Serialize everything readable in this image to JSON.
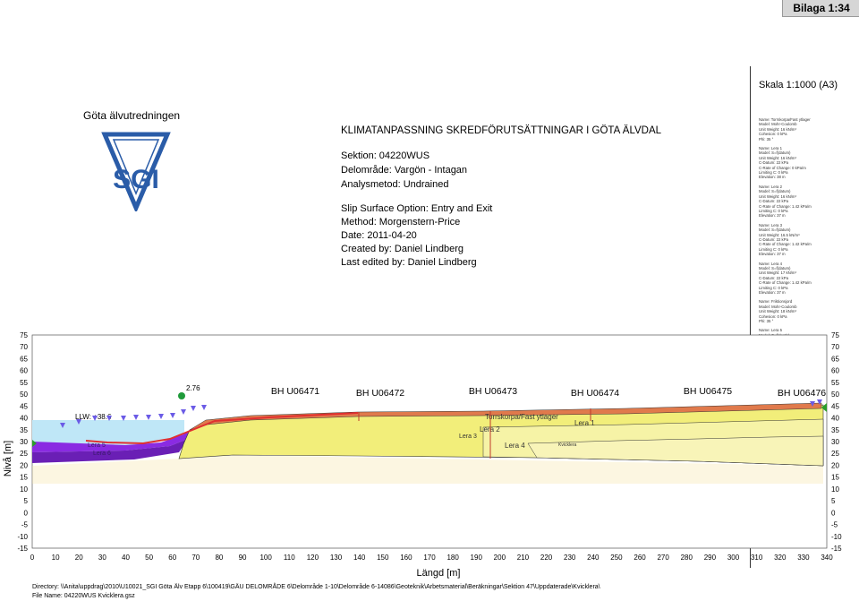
{
  "sheet": {
    "badge": "Bilaga 1:34",
    "scale": "Skala 1:1000 (A3)",
    "org": "Göta älvutredningen",
    "logo_text": "SGI"
  },
  "header": {
    "title": "KLIMATANPASSNING SKREDFÖRUTSÄTTNINGAR I GÖTA ÄLVDAL",
    "section": "Sektion: 04220WUS",
    "subarea": "Delområde: Vargön - Intagan",
    "method_analysis": "Analysmetod: Undrained",
    "slip": "Slip Surface Option: Entry and Exit",
    "method": "Method: Morgenstern-Price",
    "date": "Date: 2011-04-20",
    "created": "Created by: Daniel Lindberg",
    "edited": "Last edited by: Daniel Lindberg"
  },
  "materials": [
    [
      "Name: Torrskorpa/Fast ytlager",
      "Model: Mohr-Coulomb",
      "Unit Weight: 16 kN/m³",
      "Cohesion: 0 kPa",
      "Phi: 35 °"
    ],
    [
      "Name: Lera 1",
      "Model: S=f(datum)",
      "Unit Weight: 16 kN/m³",
      "C-Datum: 22 kPa",
      "C-Rate of Change: 0 kPa/m",
      "Limiting C: 0 kPa",
      "Elevation: 38 m"
    ],
    [
      "Name: Lera 2",
      "Model: S=f(datum)",
      "Unit Weight: 16 kN/m³",
      "C-Datum: 22 kPa",
      "C-Rate of Change: 1.42 kPa/m",
      "Limiting C: 0 kPa",
      "Elevation: 37 m"
    ],
    [
      "Name: Lera 3",
      "Model: S=f(datum)",
      "Unit Weight: 16.5 kN/m³",
      "C-Datum: 22 kPa",
      "C-Rate of Change: 1.42 kPa/m",
      "Limiting C: 0 kPa",
      "Elevation: 37 m"
    ],
    [
      "Name: Lera 4",
      "Model: S=f(datum)",
      "Unit Weight: 17 kN/m³",
      "C-Datum: 22 kPa",
      "C-Rate of Change: 1.42 kPa/m",
      "Limiting C: 0 kPa",
      "Elevation: 37 m"
    ],
    [
      "Name: Friktionsjord",
      "Model: Mohr-Coulomb",
      "Unit Weight: 18 kN/m³",
      "Cohesion: 0 kPa",
      "Phi: 35 °"
    ],
    [
      "Name: Lera 5",
      "Model: S=f(depth)",
      "Unit Weight: 16.5 kN/m³",
      "C-Top of Layer: 9 kPa",
      "C-Rate of Change: 0 kPa/m",
      "Limiting C: 0 kPa"
    ],
    [
      "Name: Lera 6",
      "Model: S=f(depth)",
      "Unit Weight: 16.5 kN/m³",
      "C-Top of Layer: 9 kPa",
      "C-Rate of Change: 1.35 kPa/m",
      "Limiting C: 0 kPa"
    ]
  ],
  "plot": {
    "y_ticks": [
      "75",
      "70",
      "65",
      "60",
      "55",
      "50",
      "45",
      "40",
      "35",
      "30",
      "25",
      "20",
      "15",
      "10",
      "5",
      "0",
      "-5",
      "-10",
      "-15"
    ],
    "x_ticks": [
      "0",
      "10",
      "20",
      "30",
      "40",
      "50",
      "60",
      "70",
      "80",
      "90",
      "100",
      "110",
      "120",
      "130",
      "140",
      "150",
      "160",
      "170",
      "180",
      "190",
      "200",
      "210",
      "220",
      "230",
      "240",
      "250",
      "260",
      "270",
      "280",
      "290",
      "300",
      "310",
      "320",
      "330",
      "340"
    ],
    "ylabel": "Nivå [m]",
    "xlabel": "Längd [m]",
    "factor": "2.76",
    "llw": "LLW: +38.6",
    "boreholes": [
      "BH U06471",
      "BH U06472",
      "BH U06473",
      "BH U06474",
      "BH U06475",
      "BH U06476"
    ],
    "layers": {
      "torrskorpa": "Torrskorpa/Fast ytlager",
      "lera1": "Lera 1",
      "lera2": "Lera 2",
      "lera3": "Lera 3",
      "lera4": "Lera 4",
      "kvicklera": "Kvicklera",
      "lera5": "Lera 5",
      "lera6": "Lera 6"
    },
    "colors": {
      "water": "#bfe7f7",
      "crust": "#e07a4c",
      "clay_yellow": "#f2ee7a",
      "clay_pale": "#f6f3a6",
      "lera5": "#8a2be2",
      "lera6": "#6a1fb5",
      "friction": "#f5e6a8"
    }
  },
  "footer": {
    "directory": "Directory: \\\\Anita\\uppdrag\\2010\\U10021_SGI Göta Älv Etapp 6\\100419\\GÄU DELOMRÅDE 6\\Delområde 1-10\\Delområde 6-14086\\Geoteknik\\Arbetsmaterial\\Beräkningar\\Sektion 47\\Uppdaterade\\Kvicklera\\",
    "file": "File Name: 04220WUS Kvicklera.gsz"
  }
}
